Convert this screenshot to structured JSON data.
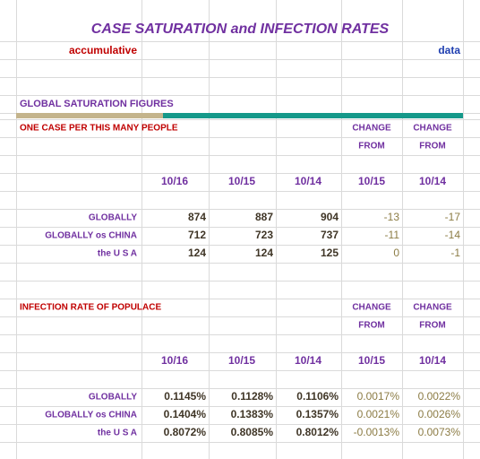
{
  "header": {
    "title": "CASE SATURATION and INFECTION RATES",
    "left_note": "accumulative",
    "right_note": "data"
  },
  "sections": [
    {
      "title": "GLOBAL SATURATION FIGURES",
      "subtitle": "ONE CASE PER THIS MANY PEOPLE",
      "change_headers": [
        [
          "CHANGE",
          "FROM"
        ],
        [
          "CHANGE",
          "FROM"
        ]
      ],
      "columns": [
        "10/16",
        "10/15",
        "10/14",
        "10/15",
        "10/14"
      ],
      "rows": [
        {
          "label": "GLOBALLY",
          "cells": [
            "874",
            "887",
            "904",
            "-13",
            "-17"
          ]
        },
        {
          "label": "GLOBALLY os CHINA",
          "cells": [
            "712",
            "723",
            "737",
            "-11",
            "-14"
          ]
        },
        {
          "label": "the U S A",
          "cells": [
            "124",
            "124",
            "125",
            "0",
            "-1"
          ]
        }
      ]
    },
    {
      "subtitle": "INFECTION RATE OF POPULACE",
      "change_headers": [
        [
          "CHANGE",
          "FROM"
        ],
        [
          "CHANGE",
          "FROM"
        ]
      ],
      "columns": [
        "10/16",
        "10/15",
        "10/14",
        "10/15",
        "10/14"
      ],
      "rows": [
        {
          "label": "GLOBALLY",
          "cells": [
            "0.1145%",
            "0.1128%",
            "0.1106%",
            "0.0017%",
            "0.0022%"
          ]
        },
        {
          "label": "GLOBALLY os CHINA",
          "cells": [
            "0.1404%",
            "0.1383%",
            "0.1357%",
            "0.0021%",
            "0.0026%"
          ]
        },
        {
          "label": "the U S A",
          "cells": [
            "0.8072%",
            "0.8085%",
            "0.8012%",
            "-0.0013%",
            "0.0073%"
          ]
        }
      ]
    }
  ]
}
